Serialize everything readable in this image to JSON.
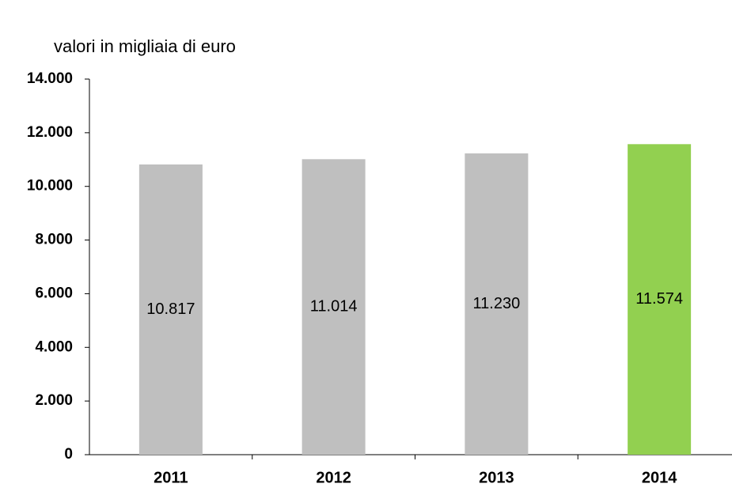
{
  "chart_data": {
    "type": "bar",
    "title": "valori in migliaia di euro",
    "categories": [
      "2011",
      "2012",
      "2013",
      "2014"
    ],
    "values": [
      10817,
      11014,
      11230,
      11574
    ],
    "value_labels": [
      "10.817",
      "11.014",
      "11.230",
      "11.574"
    ],
    "colors": [
      "#bfbfbf",
      "#bfbfbf",
      "#bfbfbf",
      "#92d050"
    ],
    "ylim": [
      0,
      14000
    ],
    "yticks": [
      0,
      {
        "value": 2000,
        "label": "2.000"
      },
      {
        "value": 4000,
        "label": "4.000"
      },
      {
        "value": 6000,
        "label": "6.000"
      },
      {
        "value": 8000,
        "label": "8.000"
      },
      {
        "value": 10000,
        "label": "10.000"
      },
      {
        "value": 12000,
        "label": "12.000"
      },
      {
        "value": 14000,
        "label": "14.000"
      }
    ],
    "grid": false
  }
}
